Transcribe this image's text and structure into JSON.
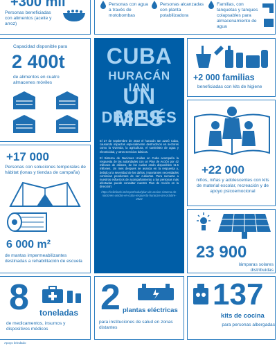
{
  "top": {
    "food_number": "+300 mil",
    "food_text": "Personas beneficiadas con alimentos (aceite y arroz)",
    "water1_text": "Personas con agua a través de motobombas",
    "water2_text": "Personas alcanzadas con planta potabilizadora",
    "water3_text": "Familias, con tanquetas y tanques colapsables para almacenamiento de agua"
  },
  "capacity": {
    "label": "Capacidad disponible para",
    "number": "2 400t",
    "text": "de alimentos en cuatro almacenes móviles"
  },
  "shelter": {
    "number": "+17 000",
    "text": "Personas con soluciones temporales de hábitat (lonas y tiendas de campaña)"
  },
  "roofing": {
    "number": "6 000 m²",
    "text": "de mantas impermeabilizantes destinadas a rehabilitación de escuela"
  },
  "hygiene": {
    "number": "+2 000 familias",
    "text": "beneficiadas con kits de higiene"
  },
  "children": {
    "number": "+22 000",
    "text": "niños, niñas y adolescentes con kits de material escolar, recreación y de apoyo psicoemocional"
  },
  "solar": {
    "number": "23 900",
    "text": "lámparas solares distribuidas"
  },
  "medical": {
    "number": "8",
    "unit": "toneladas",
    "text": "de medicamentos, insumos y dispositivos médicos"
  },
  "plants": {
    "number": "2",
    "unit": "plantas eléctricas",
    "text": "para instituciones de salud en zonas distantes"
  },
  "kitchen": {
    "number": "137",
    "unit": "kits de cocina",
    "text": "para personas albergadas"
  },
  "center": {
    "title1": "CUBA",
    "title2": "HURACÁN IAN",
    "title3": "UN MES",
    "title4": "DESPUÉS",
    "para1": "El 27 de septiembre de 2022 el huracán Ian azotó Cuba, causando impactos especialmente destructivos en sectores como la vivienda, la agricultura, el suministro de agua y electricidad, y otros servicios básicos.",
    "para2": "El Sistema de Naciones Unidas en Cuba acompaña la respuesta de las autoridades con un Plan de Acción por 42 millones de dólares, de los cuales están disponibles 11.5 millones. Un mes después se avanza en la respuesta y, debido a la severidad de los daños, importantes necesidades continúan pendientes de ser cubiertas. Para sumarse a nuestros esfuerzos de acompañamiento a las personas más afectadas puede consultar nuestro Plan de Acción en la dirección:",
    "link": "https://reliefweb.int/report/cuba/plan-de-accion-sistema-de-naciones-unidas-en-cuba-respuesta-huracan-ian-octubre-2022"
  },
  "footer": {
    "text": "Apoyo brindado"
  },
  "colors": {
    "primary": "#1f6fb2",
    "dark": "#005ea7",
    "title": "#a8d3f3"
  }
}
